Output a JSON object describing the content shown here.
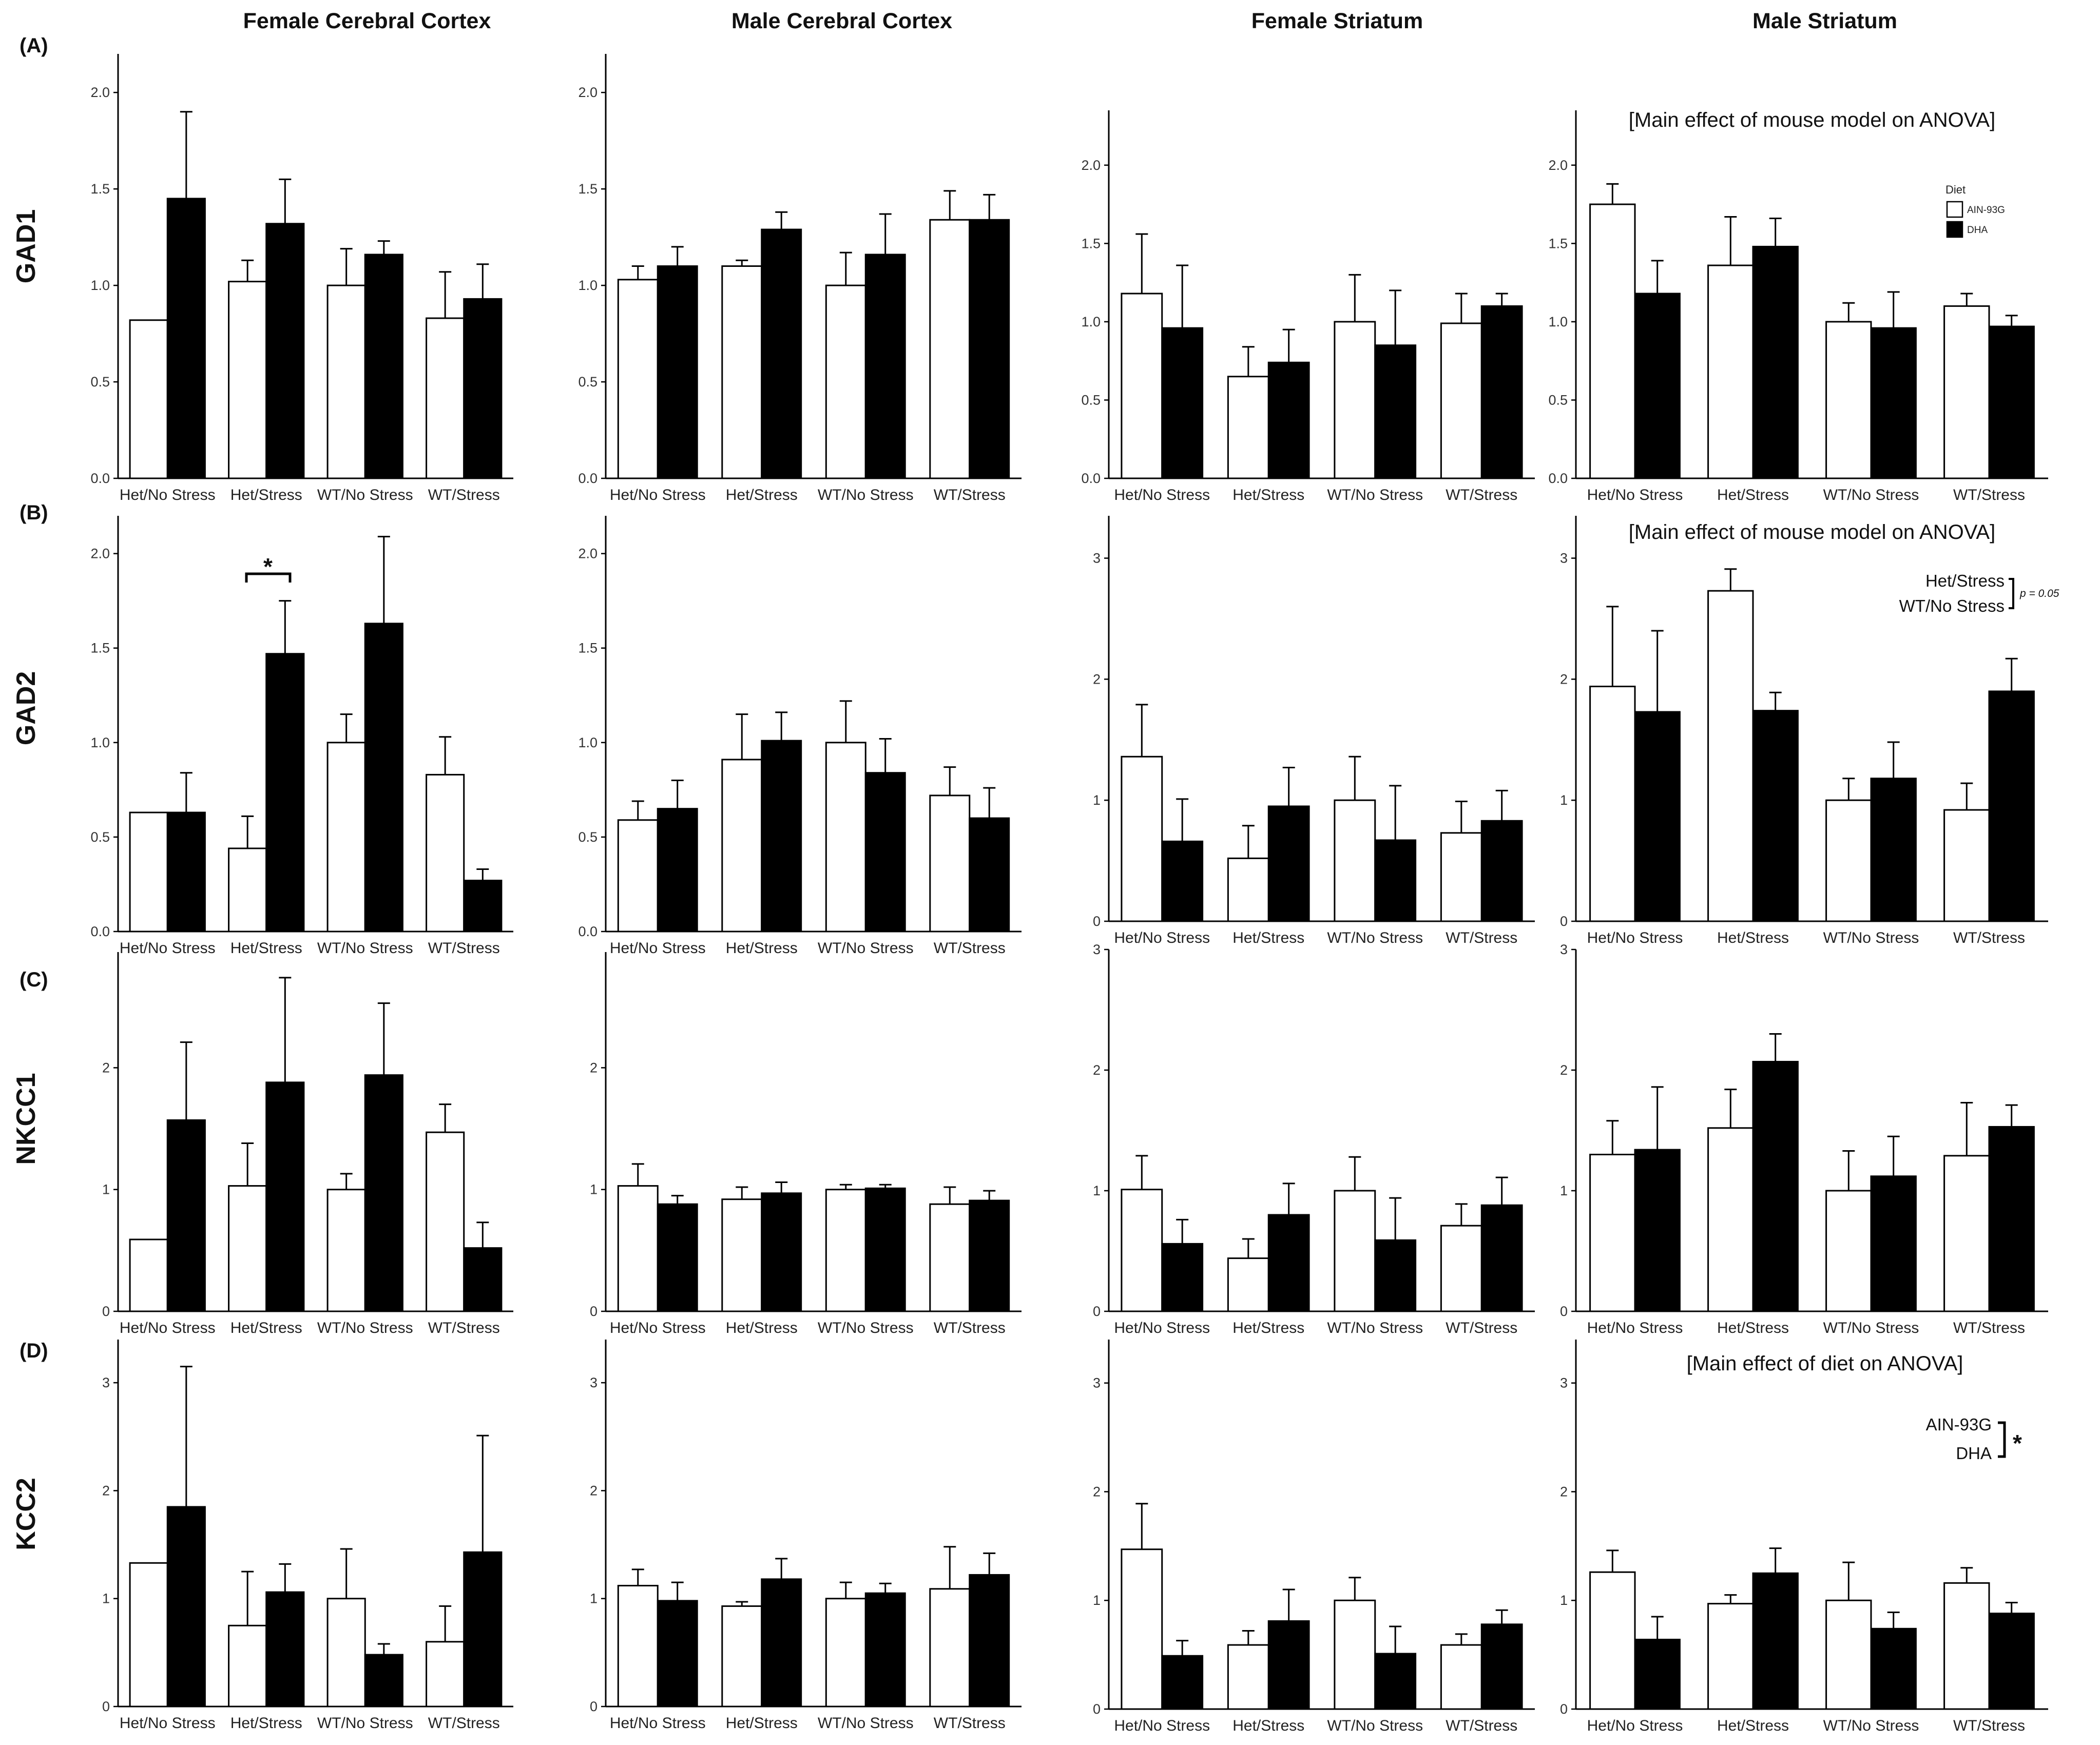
{
  "figure": {
    "column_titles": [
      "Female Cerebral Cortex",
      "Male Cerebral Cortex",
      "Female Striatum",
      "Male Striatum"
    ],
    "row_labels": [
      "(A)",
      "(B)",
      "(C)",
      "(D)"
    ],
    "gene_labels": [
      "GAD1",
      "GAD2",
      "NKCC1",
      "KCC2"
    ],
    "legend": {
      "title": "Diet",
      "items": [
        "AIN-93G",
        "DHA"
      ]
    },
    "colors": {
      "ain93g": "#ffffff",
      "dha": "#000000",
      "axis": "#000000",
      "error": "#000000"
    }
  },
  "annotations": {
    "gad1_male_striatum": "[Main effect of mouse model on ANOVA]",
    "gad2_male_striatum": "[Main effect of mouse model on ANOVA]",
    "gad2_male_striatum_bracket_top": "Het/Stress",
    "gad2_male_striatum_bracket_bottom": "WT/No Stress",
    "gad2_male_striatum_p": "p = 0.05",
    "gad2_female_cortex_star": "*",
    "kcc2_male_striatum": "[Main effect of diet on ANOVA]",
    "kcc2_male_striatum_bracket_top": "AIN-93G",
    "kcc2_male_striatum_bracket_bottom": "DHA",
    "kcc2_male_striatum_star": "*"
  },
  "chart_data": [
    {
      "id": "A1",
      "type": "bar",
      "gene": "GAD1",
      "region": "Female Cerebral Cortex",
      "categories": [
        "Het/No Stress",
        "Het/Stress",
        "WT/No Stress",
        "WT/Stress"
      ],
      "ylim": [
        0,
        2.2
      ],
      "ticks": [
        "0.0",
        "0.5",
        "1.0",
        "1.5",
        "2.0"
      ],
      "tick_values": [
        0,
        0.5,
        1.0,
        1.5,
        2.0
      ],
      "series": [
        {
          "name": "AIN-93G",
          "values": [
            0.82,
            1.02,
            1.0,
            0.83
          ],
          "errors": [
            0,
            0.11,
            0.19,
            0.24
          ]
        },
        {
          "name": "DHA",
          "values": [
            1.45,
            1.32,
            1.16,
            0.93
          ],
          "errors": [
            0.45,
            0.23,
            0.07,
            0.18
          ]
        }
      ]
    },
    {
      "id": "A2",
      "type": "bar",
      "gene": "GAD1",
      "region": "Male Cerebral Cortex",
      "categories": [
        "Het/No Stress",
        "Het/Stress",
        "WT/No Stress",
        "WT/Stress"
      ],
      "ylim": [
        0,
        2.2
      ],
      "ticks": [
        "0.0",
        "0.5",
        "1.0",
        "1.5",
        "2.0"
      ],
      "tick_values": [
        0,
        0.5,
        1.0,
        1.5,
        2.0
      ],
      "series": [
        {
          "name": "AIN-93G",
          "values": [
            1.03,
            1.1,
            1.0,
            1.34
          ],
          "errors": [
            0.07,
            0.03,
            0.17,
            0.15
          ]
        },
        {
          "name": "DHA",
          "values": [
            1.1,
            1.29,
            1.16,
            1.34
          ],
          "errors": [
            0.1,
            0.09,
            0.21,
            0.13
          ]
        }
      ]
    },
    {
      "id": "A3",
      "type": "bar",
      "gene": "GAD1",
      "region": "Female Striatum",
      "categories": [
        "Het/No Stress",
        "Het/Stress",
        "WT/No Stress",
        "WT/Stress"
      ],
      "ylim": [
        0,
        2.35
      ],
      "ticks": [
        "0.0",
        "0.5",
        "1.0",
        "1.5",
        "2.0"
      ],
      "tick_values": [
        0,
        0.5,
        1.0,
        1.5,
        2.0
      ],
      "series": [
        {
          "name": "AIN-93G",
          "values": [
            1.18,
            0.65,
            1.0,
            0.99
          ],
          "errors": [
            0.38,
            0.19,
            0.3,
            0.19
          ]
        },
        {
          "name": "DHA",
          "values": [
            0.96,
            0.74,
            0.85,
            1.1
          ],
          "errors": [
            0.4,
            0.21,
            0.35,
            0.08
          ]
        }
      ]
    },
    {
      "id": "A4",
      "type": "bar",
      "gene": "GAD1",
      "region": "Male Striatum",
      "categories": [
        "Het/No Stress",
        "Het/Stress",
        "WT/No Stress",
        "WT/Stress"
      ],
      "ylim": [
        0,
        2.35
      ],
      "ticks": [
        "0.0",
        "0.5",
        "1.0",
        "1.5",
        "2.0"
      ],
      "tick_values": [
        0,
        0.5,
        1.0,
        1.5,
        2.0
      ],
      "series": [
        {
          "name": "AIN-93G",
          "values": [
            1.75,
            1.36,
            1.0,
            1.1
          ],
          "errors": [
            0.13,
            0.31,
            0.12,
            0.08
          ]
        },
        {
          "name": "DHA",
          "values": [
            1.18,
            1.48,
            0.96,
            0.97
          ],
          "errors": [
            0.21,
            0.18,
            0.23,
            0.07
          ]
        }
      ]
    },
    {
      "id": "B1",
      "type": "bar",
      "gene": "GAD2",
      "region": "Female Cerebral Cortex",
      "categories": [
        "Het/No Stress",
        "Het/Stress",
        "WT/No Stress",
        "WT/Stress"
      ],
      "ylim": [
        0,
        2.2
      ],
      "ticks": [
        "0.0",
        "0.5",
        "1.0",
        "1.5",
        "2.0"
      ],
      "tick_values": [
        0,
        0.5,
        1.0,
        1.5,
        2.0
      ],
      "series": [
        {
          "name": "AIN-93G",
          "values": [
            0.63,
            0.44,
            1.0,
            0.83
          ],
          "errors": [
            0,
            0.17,
            0.15,
            0.2
          ]
        },
        {
          "name": "DHA",
          "values": [
            0.63,
            1.47,
            1.63,
            0.27
          ],
          "errors": [
            0.21,
            0.28,
            0.46,
            0.06
          ]
        }
      ]
    },
    {
      "id": "B2",
      "type": "bar",
      "gene": "GAD2",
      "region": "Male Cerebral Cortex",
      "categories": [
        "Het/No Stress",
        "Het/Stress",
        "WT/No Stress",
        "WT/Stress"
      ],
      "ylim": [
        0,
        2.2
      ],
      "ticks": [
        "0.0",
        "0.5",
        "1.0",
        "1.5",
        "2.0"
      ],
      "tick_values": [
        0,
        0.5,
        1.0,
        1.5,
        2.0
      ],
      "series": [
        {
          "name": "AIN-93G",
          "values": [
            0.59,
            0.91,
            1.0,
            0.72
          ],
          "errors": [
            0.1,
            0.24,
            0.22,
            0.15
          ]
        },
        {
          "name": "DHA",
          "values": [
            0.65,
            1.01,
            0.84,
            0.6
          ],
          "errors": [
            0.15,
            0.15,
            0.18,
            0.16
          ]
        }
      ]
    },
    {
      "id": "B3",
      "type": "bar",
      "gene": "GAD2",
      "region": "Female Striatum",
      "categories": [
        "Het/No Stress",
        "Het/Stress",
        "WT/No Stress",
        "WT/Stress"
      ],
      "ylim": [
        0,
        3.35
      ],
      "ticks": [
        "0",
        "1",
        "2",
        "3"
      ],
      "tick_values": [
        0,
        1,
        2,
        3
      ],
      "series": [
        {
          "name": "AIN-93G",
          "values": [
            1.36,
            0.52,
            1.0,
            0.73
          ],
          "errors": [
            0.43,
            0.27,
            0.36,
            0.26
          ]
        },
        {
          "name": "DHA",
          "values": [
            0.66,
            0.95,
            0.67,
            0.83
          ],
          "errors": [
            0.35,
            0.32,
            0.45,
            0.25
          ]
        }
      ]
    },
    {
      "id": "B4",
      "type": "bar",
      "gene": "GAD2",
      "region": "Male Striatum",
      "categories": [
        "Het/No Stress",
        "Het/Stress",
        "WT/No Stress",
        "WT/Stress"
      ],
      "ylim": [
        0,
        3.35
      ],
      "ticks": [
        "0",
        "1",
        "2",
        "3"
      ],
      "tick_values": [
        0,
        1,
        2,
        3
      ],
      "series": [
        {
          "name": "AIN-93G",
          "values": [
            1.94,
            2.73,
            1.0,
            0.92
          ],
          "errors": [
            0.66,
            0.18,
            0.18,
            0.22
          ]
        },
        {
          "name": "DHA",
          "values": [
            1.73,
            1.74,
            1.18,
            1.9
          ],
          "errors": [
            0.67,
            0.15,
            0.3,
            0.27
          ]
        }
      ]
    },
    {
      "id": "C1",
      "type": "bar",
      "gene": "NKCC1",
      "region": "Female Cerebral Cortex",
      "categories": [
        "Het/No Stress",
        "Het/Stress",
        "WT/No Stress",
        "WT/Stress"
      ],
      "ylim": [
        0,
        2.95
      ],
      "ticks": [
        "0",
        "1",
        "2"
      ],
      "tick_values": [
        0,
        1,
        2
      ],
      "series": [
        {
          "name": "AIN-93G",
          "values": [
            0.59,
            1.03,
            1.0,
            1.47
          ],
          "errors": [
            0,
            0.35,
            0.13,
            0.23
          ]
        },
        {
          "name": "DHA",
          "values": [
            1.57,
            1.88,
            1.94,
            0.52
          ],
          "errors": [
            0.64,
            0.86,
            0.59,
            0.21
          ]
        }
      ]
    },
    {
      "id": "C2",
      "type": "bar",
      "gene": "NKCC1",
      "region": "Male Cerebral Cortex",
      "categories": [
        "Het/No Stress",
        "Het/Stress",
        "WT/No Stress",
        "WT/Stress"
      ],
      "ylim": [
        0,
        2.95
      ],
      "ticks": [
        "0",
        "1",
        "2"
      ],
      "tick_values": [
        0,
        1,
        2
      ],
      "series": [
        {
          "name": "AIN-93G",
          "values": [
            1.03,
            0.92,
            1.0,
            0.88
          ],
          "errors": [
            0.18,
            0.1,
            0.04,
            0.14
          ]
        },
        {
          "name": "DHA",
          "values": [
            0.88,
            0.97,
            1.01,
            0.91
          ],
          "errors": [
            0.07,
            0.09,
            0.03,
            0.08
          ]
        }
      ]
    },
    {
      "id": "C3",
      "type": "bar",
      "gene": "NKCC1",
      "region": "Female Striatum",
      "categories": [
        "Het/No Stress",
        "Het/Stress",
        "WT/No Stress",
        "WT/Stress"
      ],
      "ylim": [
        0,
        3
      ],
      "ticks": [
        "0",
        "1",
        "2",
        "3"
      ],
      "tick_values": [
        0,
        1,
        2,
        3
      ],
      "series": [
        {
          "name": "AIN-93G",
          "values": [
            1.01,
            0.44,
            1.0,
            0.71
          ],
          "errors": [
            0.28,
            0.16,
            0.28,
            0.18
          ]
        },
        {
          "name": "DHA",
          "values": [
            0.56,
            0.8,
            0.59,
            0.88
          ],
          "errors": [
            0.2,
            0.26,
            0.35,
            0.23
          ]
        }
      ]
    },
    {
      "id": "C4",
      "type": "bar",
      "gene": "NKCC1",
      "region": "Male Striatum",
      "categories": [
        "Het/No Stress",
        "Het/Stress",
        "WT/No Stress",
        "WT/Stress"
      ],
      "ylim": [
        0,
        3
      ],
      "ticks": [
        "0",
        "1",
        "2",
        "3"
      ],
      "tick_values": [
        0,
        1,
        2,
        3
      ],
      "series": [
        {
          "name": "AIN-93G",
          "values": [
            1.3,
            1.52,
            1.0,
            1.29
          ],
          "errors": [
            0.28,
            0.32,
            0.33,
            0.44
          ]
        },
        {
          "name": "DHA",
          "values": [
            1.34,
            2.07,
            1.12,
            1.53
          ],
          "errors": [
            0.52,
            0.23,
            0.33,
            0.18
          ]
        }
      ]
    },
    {
      "id": "D1",
      "type": "bar",
      "gene": "KCC2",
      "region": "Female Cerebral Cortex",
      "categories": [
        "Het/No Stress",
        "Het/Stress",
        "WT/No Stress",
        "WT/Stress"
      ],
      "ylim": [
        0,
        3.4
      ],
      "ticks": [
        "0",
        "1",
        "2",
        "3"
      ],
      "tick_values": [
        0,
        1,
        2,
        3
      ],
      "series": [
        {
          "name": "AIN-93G",
          "values": [
            1.33,
            0.75,
            1.0,
            0.6
          ],
          "errors": [
            0,
            0.5,
            0.46,
            0.33
          ]
        },
        {
          "name": "DHA",
          "values": [
            1.85,
            1.06,
            0.48,
            1.43
          ],
          "errors": [
            1.3,
            0.26,
            0.1,
            1.08
          ]
        }
      ]
    },
    {
      "id": "D2",
      "type": "bar",
      "gene": "KCC2",
      "region": "Male Cerebral Cortex",
      "categories": [
        "Het/No Stress",
        "Het/Stress",
        "WT/No Stress",
        "WT/Stress"
      ],
      "ylim": [
        0,
        3.4
      ],
      "ticks": [
        "0",
        "1",
        "2",
        "3"
      ],
      "tick_values": [
        0,
        1,
        2,
        3
      ],
      "series": [
        {
          "name": "AIN-93G",
          "values": [
            1.12,
            0.93,
            1.0,
            1.09
          ],
          "errors": [
            0.15,
            0.04,
            0.15,
            0.39
          ]
        },
        {
          "name": "DHA",
          "values": [
            0.98,
            1.18,
            1.05,
            1.22
          ],
          "errors": [
            0.17,
            0.19,
            0.09,
            0.2
          ]
        }
      ]
    },
    {
      "id": "D3",
      "type": "bar",
      "gene": "KCC2",
      "region": "Female Striatum",
      "categories": [
        "Het/No Stress",
        "Het/Stress",
        "WT/No Stress",
        "WT/Stress"
      ],
      "ylim": [
        0,
        3.4
      ],
      "ticks": [
        "0",
        "1",
        "2",
        "3"
      ],
      "tick_values": [
        0,
        1,
        2,
        3
      ],
      "series": [
        {
          "name": "AIN-93G",
          "values": [
            1.47,
            0.59,
            1.0,
            0.59
          ],
          "errors": [
            0.42,
            0.13,
            0.21,
            0.1
          ]
        },
        {
          "name": "DHA",
          "values": [
            0.49,
            0.81,
            0.51,
            0.78
          ],
          "errors": [
            0.14,
            0.29,
            0.25,
            0.13
          ]
        }
      ]
    },
    {
      "id": "D4",
      "type": "bar",
      "gene": "KCC2",
      "region": "Male Striatum",
      "categories": [
        "Het/No Stress",
        "Het/Stress",
        "WT/No Stress",
        "WT/Stress"
      ],
      "ylim": [
        0,
        3.4
      ],
      "ticks": [
        "0",
        "1",
        "2",
        "3"
      ],
      "tick_values": [
        0,
        1,
        2,
        3
      ],
      "series": [
        {
          "name": "AIN-93G",
          "values": [
            1.26,
            0.97,
            1.0,
            1.16
          ],
          "errors": [
            0.2,
            0.08,
            0.35,
            0.14
          ]
        },
        {
          "name": "DHA",
          "values": [
            0.64,
            1.25,
            0.74,
            0.88
          ],
          "errors": [
            0.21,
            0.23,
            0.15,
            0.1
          ]
        }
      ]
    }
  ]
}
